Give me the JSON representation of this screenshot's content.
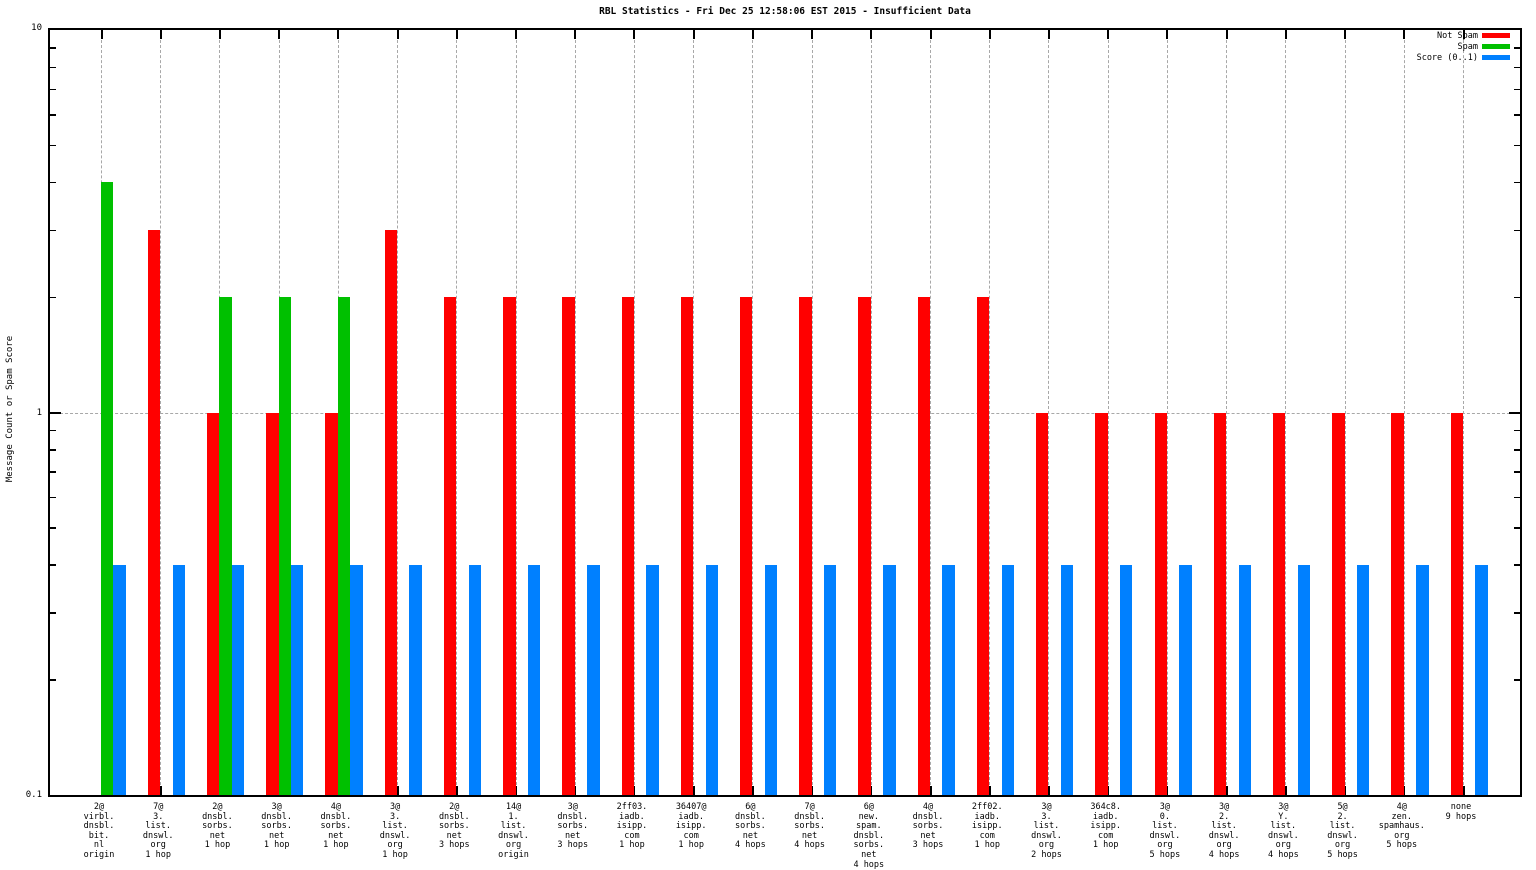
{
  "title": "RBL Statistics - Fri Dec 25 12:58:06 EST 2015 - Insufficient Data",
  "ylabel": "Message Count or Spam Score",
  "colors": {
    "not_spam": "#ff0000",
    "spam": "#00c000",
    "score": "#0080ff",
    "grid": "#a8a8a8",
    "border": "#000000"
  },
  "legend": {
    "position": "top-right",
    "items": [
      {
        "label": "Not Spam",
        "color": "#ff0000"
      },
      {
        "label": "Spam",
        "color": "#00c000"
      },
      {
        "label": "Score (0..1)",
        "color": "#0080ff"
      }
    ]
  },
  "y_axis": {
    "scale": "log",
    "min": 0.1,
    "max": 10,
    "major_tick_labels": [
      "10",
      "1",
      "0.1"
    ],
    "minor_ticks": [
      0.2,
      0.3,
      0.4,
      0.5,
      0.6,
      0.7,
      0.8,
      0.9,
      2,
      3,
      4,
      5,
      6,
      7,
      8,
      9
    ]
  },
  "chart_data": {
    "type": "bar",
    "title": "RBL Statistics - Fri Dec 25 12:58:06 EST 2015 - Insufficient Data",
    "xlabel": "",
    "ylabel": "Message Count or Spam Score",
    "yscale": "log",
    "ylim": [
      0.1,
      10
    ],
    "grid": true,
    "legend_position": "top-right",
    "categories": [
      [
        "2@",
        "virbl.",
        "dnsbl.",
        "bit.",
        "nl",
        "origin"
      ],
      [
        "7@",
        "3.",
        "list.",
        "dnswl.",
        "org",
        "1 hop"
      ],
      [
        "2@",
        "dnsbl.",
        "sorbs.",
        "net",
        "1 hop"
      ],
      [
        "3@",
        "dnsbl.",
        "sorbs.",
        "net",
        "1 hop"
      ],
      [
        "4@",
        "dnsbl.",
        "sorbs.",
        "net",
        "1 hop"
      ],
      [
        "3@",
        "3.",
        "list.",
        "dnswl.",
        "org",
        "1 hop"
      ],
      [
        "2@",
        "dnsbl.",
        "sorbs.",
        "net",
        "3 hops"
      ],
      [
        "14@",
        "1.",
        "list.",
        "dnswl.",
        "org",
        "origin"
      ],
      [
        "3@",
        "dnsbl.",
        "sorbs.",
        "net",
        "3 hops"
      ],
      [
        "2ff03.",
        "iadb.",
        "isipp.",
        "com",
        "1 hop"
      ],
      [
        "36407@",
        "iadb.",
        "isipp.",
        "com",
        "1 hop"
      ],
      [
        "6@",
        "dnsbl.",
        "sorbs.",
        "net",
        "4 hops"
      ],
      [
        "7@",
        "dnsbl.",
        "sorbs.",
        "net",
        "4 hops"
      ],
      [
        "6@",
        "new.",
        "spam.",
        "dnsbl.",
        "sorbs.",
        "net",
        "4 hops"
      ],
      [
        "4@",
        "dnsbl.",
        "sorbs.",
        "net",
        "3 hops"
      ],
      [
        "2ff02.",
        "iadb.",
        "isipp.",
        "com",
        "1 hop"
      ],
      [
        "3@",
        "3.",
        "list.",
        "dnswl.",
        "org",
        "2 hops"
      ],
      [
        "364c8.",
        "iadb.",
        "isipp.",
        "com",
        "1 hop"
      ],
      [
        "3@",
        "0.",
        "list.",
        "dnswl.",
        "org",
        "5 hops"
      ],
      [
        "3@",
        "2.",
        "list.",
        "dnswl.",
        "org",
        "4 hops"
      ],
      [
        "3@",
        "Y.",
        "list.",
        "dnswl.",
        "org",
        "4 hops"
      ],
      [
        "5@",
        "2.",
        "list.",
        "dnswl.",
        "org",
        "5 hops"
      ],
      [
        "4@",
        "zen.",
        "spamhaus.",
        "org",
        "5 hops"
      ],
      [
        "none",
        "9 hops"
      ]
    ],
    "series": [
      {
        "name": "Not Spam",
        "color": "#ff0000",
        "values": [
          null,
          3,
          1,
          1,
          1,
          3,
          2,
          2,
          2,
          2,
          2,
          2,
          2,
          2,
          2,
          2,
          1,
          1,
          1,
          1,
          1,
          1,
          1,
          1
        ]
      },
      {
        "name": "Spam",
        "color": "#00c000",
        "values": [
          4,
          null,
          2,
          2,
          2,
          null,
          null,
          null,
          null,
          null,
          null,
          null,
          null,
          null,
          null,
          null,
          null,
          null,
          null,
          null,
          null,
          null,
          null,
          null
        ]
      },
      {
        "name": "Score (0..1)",
        "color": "#0080ff",
        "values": [
          0.4,
          0.4,
          0.4,
          0.4,
          0.4,
          0.4,
          0.4,
          0.4,
          0.4,
          0.4,
          0.4,
          0.4,
          0.4,
          0.4,
          0.4,
          0.4,
          0.4,
          0.4,
          0.4,
          0.4,
          0.4,
          0.4,
          0.4,
          0.4
        ]
      }
    ]
  }
}
